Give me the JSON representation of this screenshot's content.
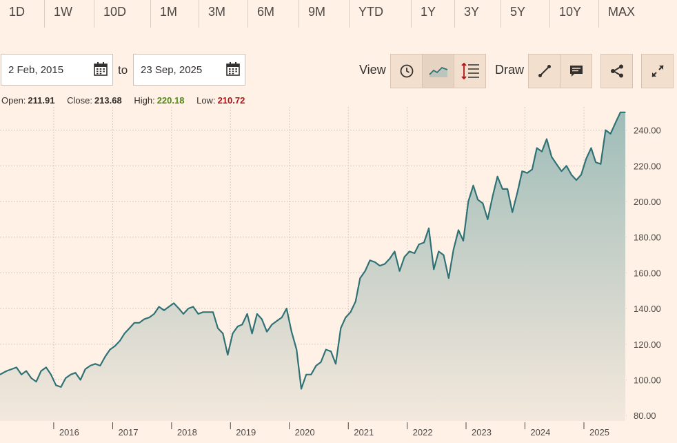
{
  "range_buttons": [
    "1D",
    "1W",
    "10D",
    "1M",
    "3M",
    "6M",
    "9M",
    "YTD",
    "1Y",
    "3Y",
    "5Y",
    "10Y",
    "MAX"
  ],
  "date_range": {
    "from": "2 Feb, 2015",
    "to_label": "to",
    "to": "23 Sep, 2025"
  },
  "toolbar": {
    "view_label": "View",
    "draw_label": "Draw",
    "icons": [
      "clock-icon",
      "line-chart-icon",
      "volume-icon",
      "line-tool-icon",
      "comment-icon",
      "share-icon",
      "expand-icon"
    ]
  },
  "ohlc": {
    "open_label": "Open:",
    "open": "211.91",
    "close_label": "Close:",
    "close": "213.68",
    "high_label": "High:",
    "high": "220.18",
    "low_label": "Low:",
    "low": "210.72"
  },
  "colors": {
    "background": "#fff1e5",
    "line": "#2e7276",
    "area_top": "#9fbcb8",
    "area_bottom": "#f4e8dc",
    "high": "#4d8a0f",
    "low": "#b31217",
    "grid": "#d6cbc1"
  },
  "chart_data": {
    "type": "area",
    "title": "",
    "xlabel": "",
    "ylabel": "",
    "ylim": [
      77,
      253
    ],
    "xlim": [
      "2015-02-02",
      "2025-09-23"
    ],
    "yticks": [
      "80.00",
      "100.00",
      "120.00",
      "140.00",
      "160.00",
      "180.00",
      "200.00",
      "220.00",
      "240.00"
    ],
    "ytick_values": [
      80,
      100,
      120,
      140,
      160,
      180,
      200,
      220,
      240
    ],
    "xticks": [
      "2016",
      "2017",
      "2018",
      "2019",
      "2020",
      "2021",
      "2022",
      "2023",
      "2024",
      "2025"
    ],
    "grid": true,
    "series": [
      {
        "values": [
          [
            "2015-02",
            103
          ],
          [
            "2015-03",
            105
          ],
          [
            "2015-04",
            106
          ],
          [
            "2015-05",
            107
          ],
          [
            "2015-06",
            103
          ],
          [
            "2015-07",
            105
          ],
          [
            "2015-08",
            101
          ],
          [
            "2015-09",
            99
          ],
          [
            "2015-10",
            105
          ],
          [
            "2015-11",
            107
          ],
          [
            "2015-12",
            103
          ],
          [
            "2016-01",
            97
          ],
          [
            "2016-02",
            96
          ],
          [
            "2016-03",
            101
          ],
          [
            "2016-04",
            103
          ],
          [
            "2016-05",
            104
          ],
          [
            "2016-06",
            100
          ],
          [
            "2016-07",
            106
          ],
          [
            "2016-08",
            108
          ],
          [
            "2016-09",
            109
          ],
          [
            "2016-10",
            108
          ],
          [
            "2016-11",
            113
          ],
          [
            "2016-12",
            117
          ],
          [
            "2017-01",
            119
          ],
          [
            "2017-02",
            122
          ],
          [
            "2017-03",
            126
          ],
          [
            "2017-04",
            129
          ],
          [
            "2017-05",
            132
          ],
          [
            "2017-06",
            132
          ],
          [
            "2017-07",
            134
          ],
          [
            "2017-08",
            135
          ],
          [
            "2017-09",
            137
          ],
          [
            "2017-10",
            141
          ],
          [
            "2017-11",
            139
          ],
          [
            "2017-12",
            141
          ],
          [
            "2018-01",
            143
          ],
          [
            "2018-02",
            140
          ],
          [
            "2018-03",
            137
          ],
          [
            "2018-04",
            140
          ],
          [
            "2018-05",
            141
          ],
          [
            "2018-06",
            137
          ],
          [
            "2018-07",
            138
          ],
          [
            "2018-08",
            138
          ],
          [
            "2018-09",
            138
          ],
          [
            "2018-10",
            129
          ],
          [
            "2018-11",
            126
          ],
          [
            "2018-12",
            114
          ],
          [
            "2019-01",
            126
          ],
          [
            "2019-02",
            130
          ],
          [
            "2019-03",
            131
          ],
          [
            "2019-04",
            137
          ],
          [
            "2019-05",
            126
          ],
          [
            "2019-06",
            137
          ],
          [
            "2019-07",
            134
          ],
          [
            "2019-08",
            127
          ],
          [
            "2019-09",
            131
          ],
          [
            "2019-10",
            133
          ],
          [
            "2019-11",
            135
          ],
          [
            "2019-12",
            140
          ],
          [
            "2020-01",
            127
          ],
          [
            "2020-02",
            117
          ],
          [
            "2020-03",
            95
          ],
          [
            "2020-04",
            103
          ],
          [
            "2020-05",
            103
          ],
          [
            "2020-06",
            108
          ],
          [
            "2020-07",
            110
          ],
          [
            "2020-08",
            117
          ],
          [
            "2020-09",
            116
          ],
          [
            "2020-10",
            109
          ],
          [
            "2020-11",
            129
          ],
          [
            "2020-12",
            135
          ],
          [
            "2021-01",
            138
          ],
          [
            "2021-02",
            144
          ],
          [
            "2021-03",
            157
          ],
          [
            "2021-04",
            161
          ],
          [
            "2021-05",
            167
          ],
          [
            "2021-06",
            166
          ],
          [
            "2021-07",
            164
          ],
          [
            "2021-08",
            165
          ],
          [
            "2021-09",
            168
          ],
          [
            "2021-10",
            172
          ],
          [
            "2021-11",
            161
          ],
          [
            "2021-12",
            169
          ],
          [
            "2022-01",
            172
          ],
          [
            "2022-02",
            171
          ],
          [
            "2022-03",
            176
          ],
          [
            "2022-04",
            177
          ],
          [
            "2022-05",
            185
          ],
          [
            "2022-06",
            162
          ],
          [
            "2022-07",
            172
          ],
          [
            "2022-08",
            170
          ],
          [
            "2022-09",
            157
          ],
          [
            "2022-10",
            173
          ],
          [
            "2022-11",
            184
          ],
          [
            "2022-12",
            178
          ],
          [
            "2023-01",
            200
          ],
          [
            "2023-02",
            209
          ],
          [
            "2023-03",
            201
          ],
          [
            "2023-04",
            199
          ],
          [
            "2023-05",
            190
          ],
          [
            "2023-06",
            203
          ],
          [
            "2023-07",
            214
          ],
          [
            "2023-08",
            207
          ],
          [
            "2023-09",
            207
          ],
          [
            "2023-10",
            194
          ],
          [
            "2023-11",
            205
          ],
          [
            "2023-12",
            217
          ],
          [
            "2024-01",
            216
          ],
          [
            "2024-02",
            218
          ],
          [
            "2024-03",
            230
          ],
          [
            "2024-04",
            228
          ],
          [
            "2024-05",
            235
          ],
          [
            "2024-06",
            225
          ],
          [
            "2024-07",
            221
          ],
          [
            "2024-08",
            217
          ],
          [
            "2024-09",
            220
          ],
          [
            "2024-10",
            215
          ],
          [
            "2024-11",
            212
          ],
          [
            "2024-12",
            215
          ],
          [
            "2025-01",
            224
          ],
          [
            "2025-02",
            230
          ],
          [
            "2025-03",
            222
          ],
          [
            "2025-04",
            221
          ],
          [
            "2025-05",
            240
          ],
          [
            "2025-06",
            238
          ],
          [
            "2025-07",
            244
          ],
          [
            "2025-08",
            250
          ],
          [
            "2025-09",
            250
          ]
        ]
      }
    ]
  }
}
